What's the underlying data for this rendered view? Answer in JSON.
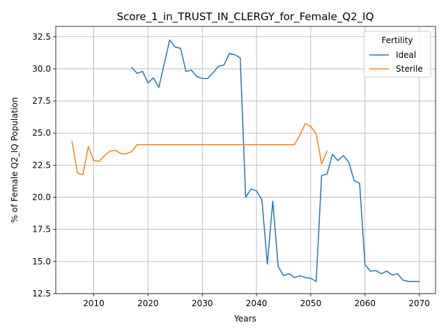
{
  "chart_data": {
    "type": "line",
    "title": "Score_1_in_TRUST_IN_CLERGY_for_Female_Q2_IQ",
    "xlabel": "Years",
    "ylabel": "% of Female Q2_IQ Population",
    "xlim": [
      2003,
      2073
    ],
    "ylim": [
      12.5,
      33.3
    ],
    "xticks": [
      2010,
      2020,
      2030,
      2040,
      2050,
      2060,
      2070
    ],
    "yticks": [
      12.5,
      15.0,
      17.5,
      20.0,
      22.5,
      25.0,
      27.5,
      30.0,
      32.5
    ],
    "ytick_labels": [
      "12.5",
      "15.0",
      "17.5",
      "20.0",
      "22.5",
      "25.0",
      "27.5",
      "30.0",
      "32.5"
    ],
    "grid": true,
    "legend": {
      "title": "Fertility",
      "position": "top-right"
    },
    "series": [
      {
        "name": "Ideal",
        "color": "#1f77b4",
        "x": [
          2017,
          2018,
          2019,
          2020,
          2021,
          2022,
          2023,
          2024,
          2025,
          2026,
          2027,
          2028,
          2029,
          2030,
          2031,
          2032,
          2033,
          2034,
          2035,
          2036,
          2037,
          2038,
          2039,
          2040,
          2041,
          2042,
          2043,
          2044,
          2045,
          2046,
          2047,
          2048,
          2049,
          2050,
          2051,
          2052,
          2053,
          2054,
          2055,
          2056,
          2057,
          2058,
          2059,
          2060,
          2061,
          2062,
          2063,
          2064,
          2065,
          2066,
          2067,
          2068,
          2069,
          2070
        ],
        "y": [
          30.1,
          29.65,
          29.8,
          28.9,
          29.3,
          28.55,
          30.4,
          32.25,
          31.7,
          31.6,
          29.8,
          29.9,
          29.4,
          29.25,
          29.25,
          29.7,
          30.2,
          30.3,
          31.2,
          31.1,
          30.85,
          20.0,
          20.65,
          20.5,
          19.8,
          14.8,
          19.7,
          14.6,
          13.9,
          14.05,
          13.75,
          13.9,
          13.75,
          13.7,
          13.45,
          21.7,
          21.8,
          23.35,
          22.85,
          23.25,
          22.75,
          21.3,
          21.1,
          14.75,
          14.25,
          14.3,
          14.05,
          14.25,
          13.95,
          14.05,
          13.55,
          13.45,
          13.45,
          13.45
        ]
      },
      {
        "name": "Sterile",
        "color": "#ff7f0e",
        "x": [
          2006,
          2007,
          2008,
          2009,
          2010,
          2011,
          2012,
          2013,
          2014,
          2015,
          2016,
          2017,
          2018,
          2019,
          2020,
          2021,
          2022,
          2023,
          2024,
          2025,
          2026,
          2027,
          2028,
          2029,
          2030,
          2031,
          2032,
          2033,
          2034,
          2035,
          2036,
          2037,
          2038,
          2039,
          2040,
          2041,
          2042,
          2043,
          2044,
          2045,
          2046,
          2047,
          2048,
          2049,
          2050,
          2051,
          2052,
          2053
        ],
        "y": [
          24.35,
          21.9,
          21.75,
          23.95,
          22.85,
          22.8,
          23.25,
          23.6,
          23.65,
          23.4,
          23.4,
          23.55,
          24.1,
          24.1,
          24.1,
          24.1,
          24.1,
          24.1,
          24.1,
          24.1,
          24.1,
          24.1,
          24.1,
          24.1,
          24.1,
          24.1,
          24.1,
          24.1,
          24.1,
          24.1,
          24.1,
          24.1,
          24.1,
          24.1,
          24.1,
          24.1,
          24.1,
          24.1,
          24.1,
          24.1,
          24.1,
          24.1,
          24.85,
          25.75,
          25.5,
          24.95,
          22.6,
          23.6
        ]
      }
    ]
  }
}
